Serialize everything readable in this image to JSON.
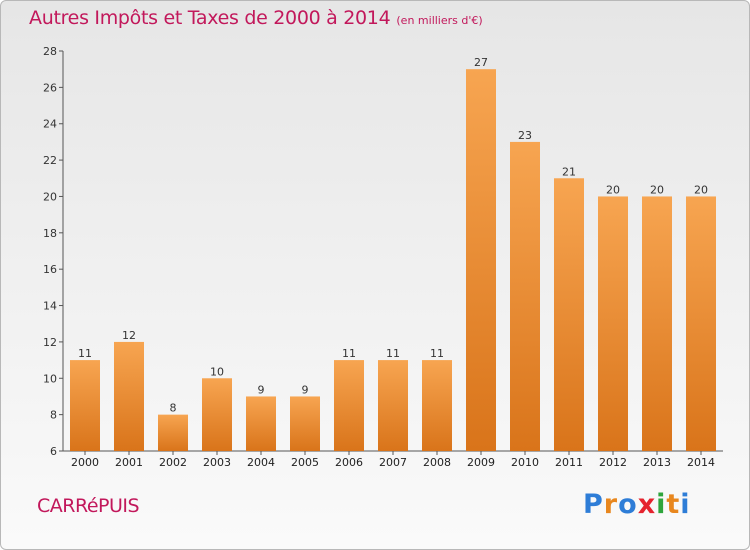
{
  "chart_data": {
    "type": "bar",
    "title": "Autres Impôts et Taxes de 2000 à 2014",
    "subtitle": "(en milliers d'€)",
    "categories": [
      "2000",
      "2001",
      "2002",
      "2003",
      "2004",
      "2005",
      "2006",
      "2007",
      "2008",
      "2009",
      "2010",
      "2011",
      "2012",
      "2013",
      "2014"
    ],
    "values": [
      11,
      12,
      8,
      10,
      9,
      9,
      11,
      11,
      11,
      27,
      23,
      21,
      20,
      20,
      20
    ],
    "ylim": [
      6,
      28
    ],
    "yticks": [
      6,
      8,
      10,
      12,
      14,
      16,
      18,
      20,
      22,
      24,
      26,
      28
    ],
    "grid": false,
    "xlabel": "",
    "ylabel": "",
    "bar_color": "#f0902e"
  },
  "footer": {
    "commune": "CARRéPUIS",
    "brand": "Proxiti",
    "brand_colors": [
      "#2e7dd7",
      "#e8871e",
      "#2e7dd7",
      "#e5232e",
      "#2ea53c",
      "#e8871e",
      "#2e7dd7"
    ]
  }
}
